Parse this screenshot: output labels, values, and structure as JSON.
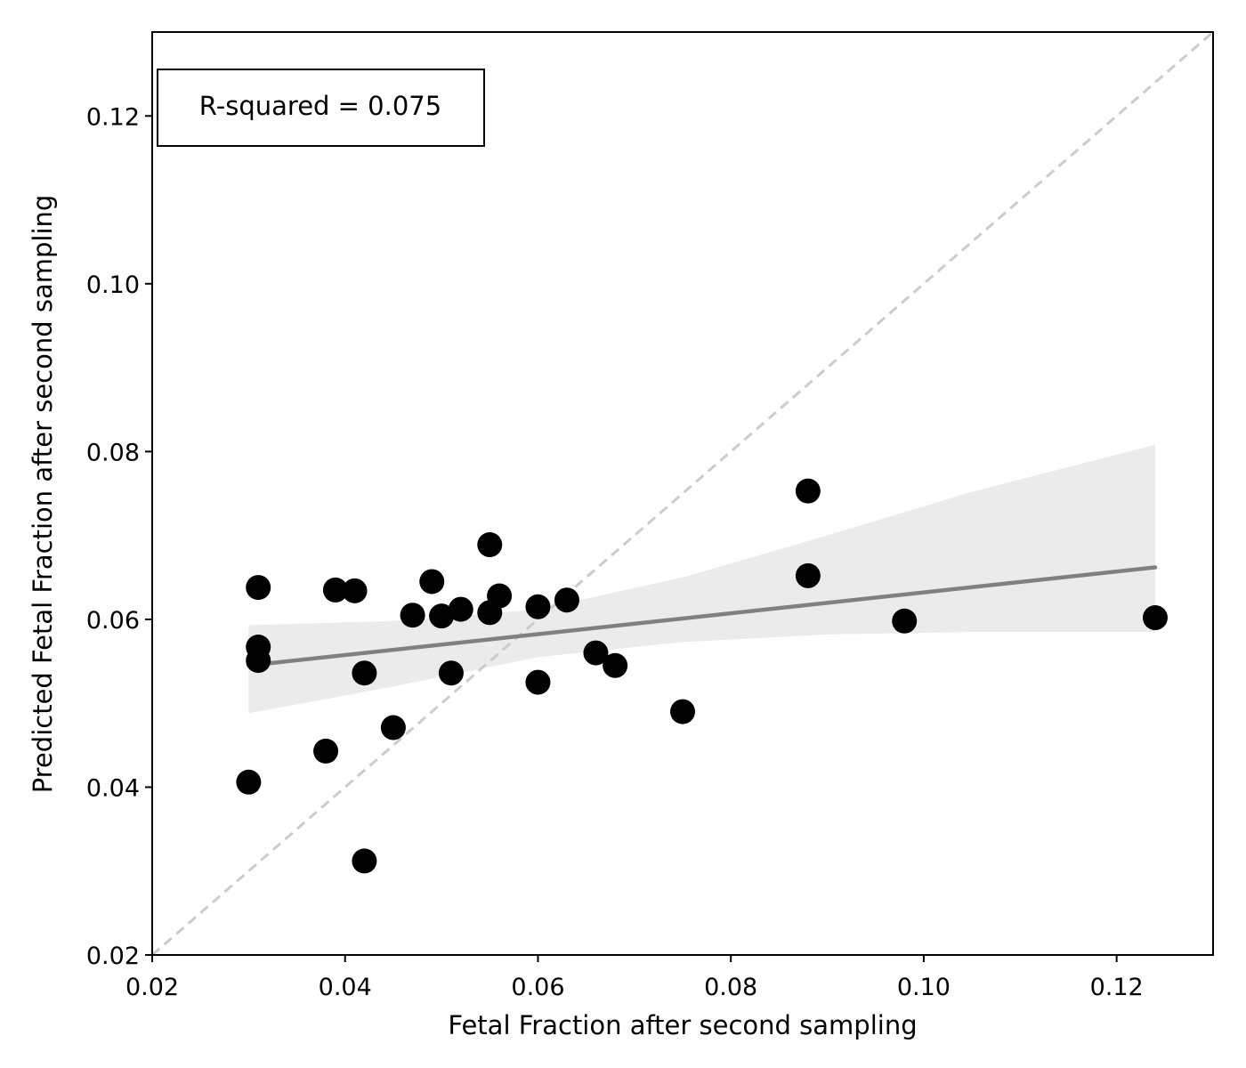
{
  "chart_data": {
    "type": "scatter",
    "xlabel": "Fetal Fraction after second sampling",
    "ylabel": "Predicted Fetal Fraction after second sampling",
    "xlim": [
      0.02,
      0.13
    ],
    "ylim": [
      0.02,
      0.13
    ],
    "x_ticks": [
      "0.02",
      "0.04",
      "0.06",
      "0.08",
      "0.10",
      "0.12"
    ],
    "y_ticks": [
      "0.02",
      "0.04",
      "0.06",
      "0.08",
      "0.10",
      "0.12"
    ],
    "grid": false,
    "annotation": "R-squared = 0.075",
    "points": [
      {
        "x": 0.03,
        "y": 0.0406
      },
      {
        "x": 0.031,
        "y": 0.0638
      },
      {
        "x": 0.031,
        "y": 0.0567
      },
      {
        "x": 0.031,
        "y": 0.0551
      },
      {
        "x": 0.038,
        "y": 0.0443
      },
      {
        "x": 0.039,
        "y": 0.0635
      },
      {
        "x": 0.041,
        "y": 0.0634
      },
      {
        "x": 0.042,
        "y": 0.0536
      },
      {
        "x": 0.042,
        "y": 0.0312
      },
      {
        "x": 0.045,
        "y": 0.0471
      },
      {
        "x": 0.047,
        "y": 0.0605
      },
      {
        "x": 0.049,
        "y": 0.0645
      },
      {
        "x": 0.05,
        "y": 0.0604
      },
      {
        "x": 0.051,
        "y": 0.0536
      },
      {
        "x": 0.052,
        "y": 0.0612
      },
      {
        "x": 0.055,
        "y": 0.0689
      },
      {
        "x": 0.055,
        "y": 0.0608
      },
      {
        "x": 0.056,
        "y": 0.0628
      },
      {
        "x": 0.06,
        "y": 0.0615
      },
      {
        "x": 0.06,
        "y": 0.0525
      },
      {
        "x": 0.063,
        "y": 0.0623
      },
      {
        "x": 0.066,
        "y": 0.056
      },
      {
        "x": 0.068,
        "y": 0.0545
      },
      {
        "x": 0.075,
        "y": 0.049
      },
      {
        "x": 0.088,
        "y": 0.0753
      },
      {
        "x": 0.088,
        "y": 0.0652
      },
      {
        "x": 0.098,
        "y": 0.0598
      },
      {
        "x": 0.124,
        "y": 0.0602
      }
    ],
    "fit_line": {
      "x": [
        0.03,
        0.124
      ],
      "y": [
        0.0545,
        0.0662
      ]
    },
    "confidence_band": {
      "x": [
        0.03,
        0.045,
        0.06,
        0.075,
        0.09,
        0.105,
        0.124
      ],
      "upper": [
        0.0593,
        0.0598,
        0.0612,
        0.065,
        0.07,
        0.0752,
        0.0808
      ],
      "lower": [
        0.0488,
        0.052,
        0.0555,
        0.0573,
        0.0582,
        0.0585,
        0.0585
      ]
    },
    "identity_line": true,
    "colors": {
      "points": "#000000",
      "fit_line": "#808080",
      "band": "#ebebeb",
      "identity_line": "#cccccc"
    }
  }
}
